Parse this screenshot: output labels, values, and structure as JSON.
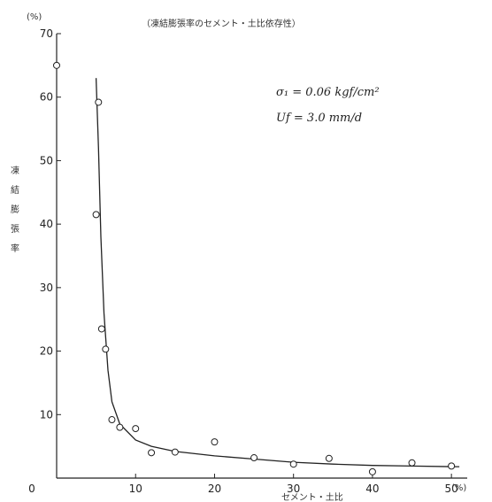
{
  "chart_data": {
    "type": "scatter",
    "title": "（凍結膨張率のセメント・土比依存性）",
    "xlabel": "セメント・土比",
    "ylabel": "凍結膨張率",
    "x_unit": "(%)",
    "y_unit": "(%)",
    "xlim": [
      0,
      52
    ],
    "ylim": [
      0,
      70
    ],
    "xticks": [
      0,
      10,
      20,
      30,
      40,
      50
    ],
    "yticks": [
      0,
      10,
      20,
      30,
      40,
      50,
      60,
      70
    ],
    "grid": false,
    "annotations": [
      "σ₁ = 0.06 kgf/cm²",
      "Uf = 3.0 mm/d"
    ],
    "series": [
      {
        "values": [
          [
            0,
            65
          ],
          [
            5.3,
            59.2
          ],
          [
            5,
            41.5
          ],
          [
            5.7,
            23.5
          ],
          [
            6.2,
            20.3
          ],
          [
            7,
            9.2
          ],
          [
            8,
            8
          ],
          [
            10,
            7.8
          ],
          [
            12,
            4
          ],
          [
            15,
            4.1
          ],
          [
            20,
            5.7
          ],
          [
            25,
            3.2
          ],
          [
            30,
            2.2
          ],
          [
            34.5,
            3.1
          ],
          [
            40,
            1
          ],
          [
            45,
            2.4
          ],
          [
            50,
            1.9
          ]
        ]
      }
    ],
    "fit_curve": [
      [
        5,
        63
      ],
      [
        5.3,
        52
      ],
      [
        5.6,
        38
      ],
      [
        6,
        26
      ],
      [
        6.5,
        17
      ],
      [
        7,
        12
      ],
      [
        8,
        8.5
      ],
      [
        10,
        6
      ],
      [
        12,
        5
      ],
      [
        15,
        4.2
      ],
      [
        20,
        3.5
      ],
      [
        25,
        3
      ],
      [
        30,
        2.5
      ],
      [
        35,
        2.2
      ],
      [
        40,
        2
      ],
      [
        45,
        1.9
      ],
      [
        50,
        1.8
      ],
      [
        51,
        1.8
      ]
    ]
  }
}
